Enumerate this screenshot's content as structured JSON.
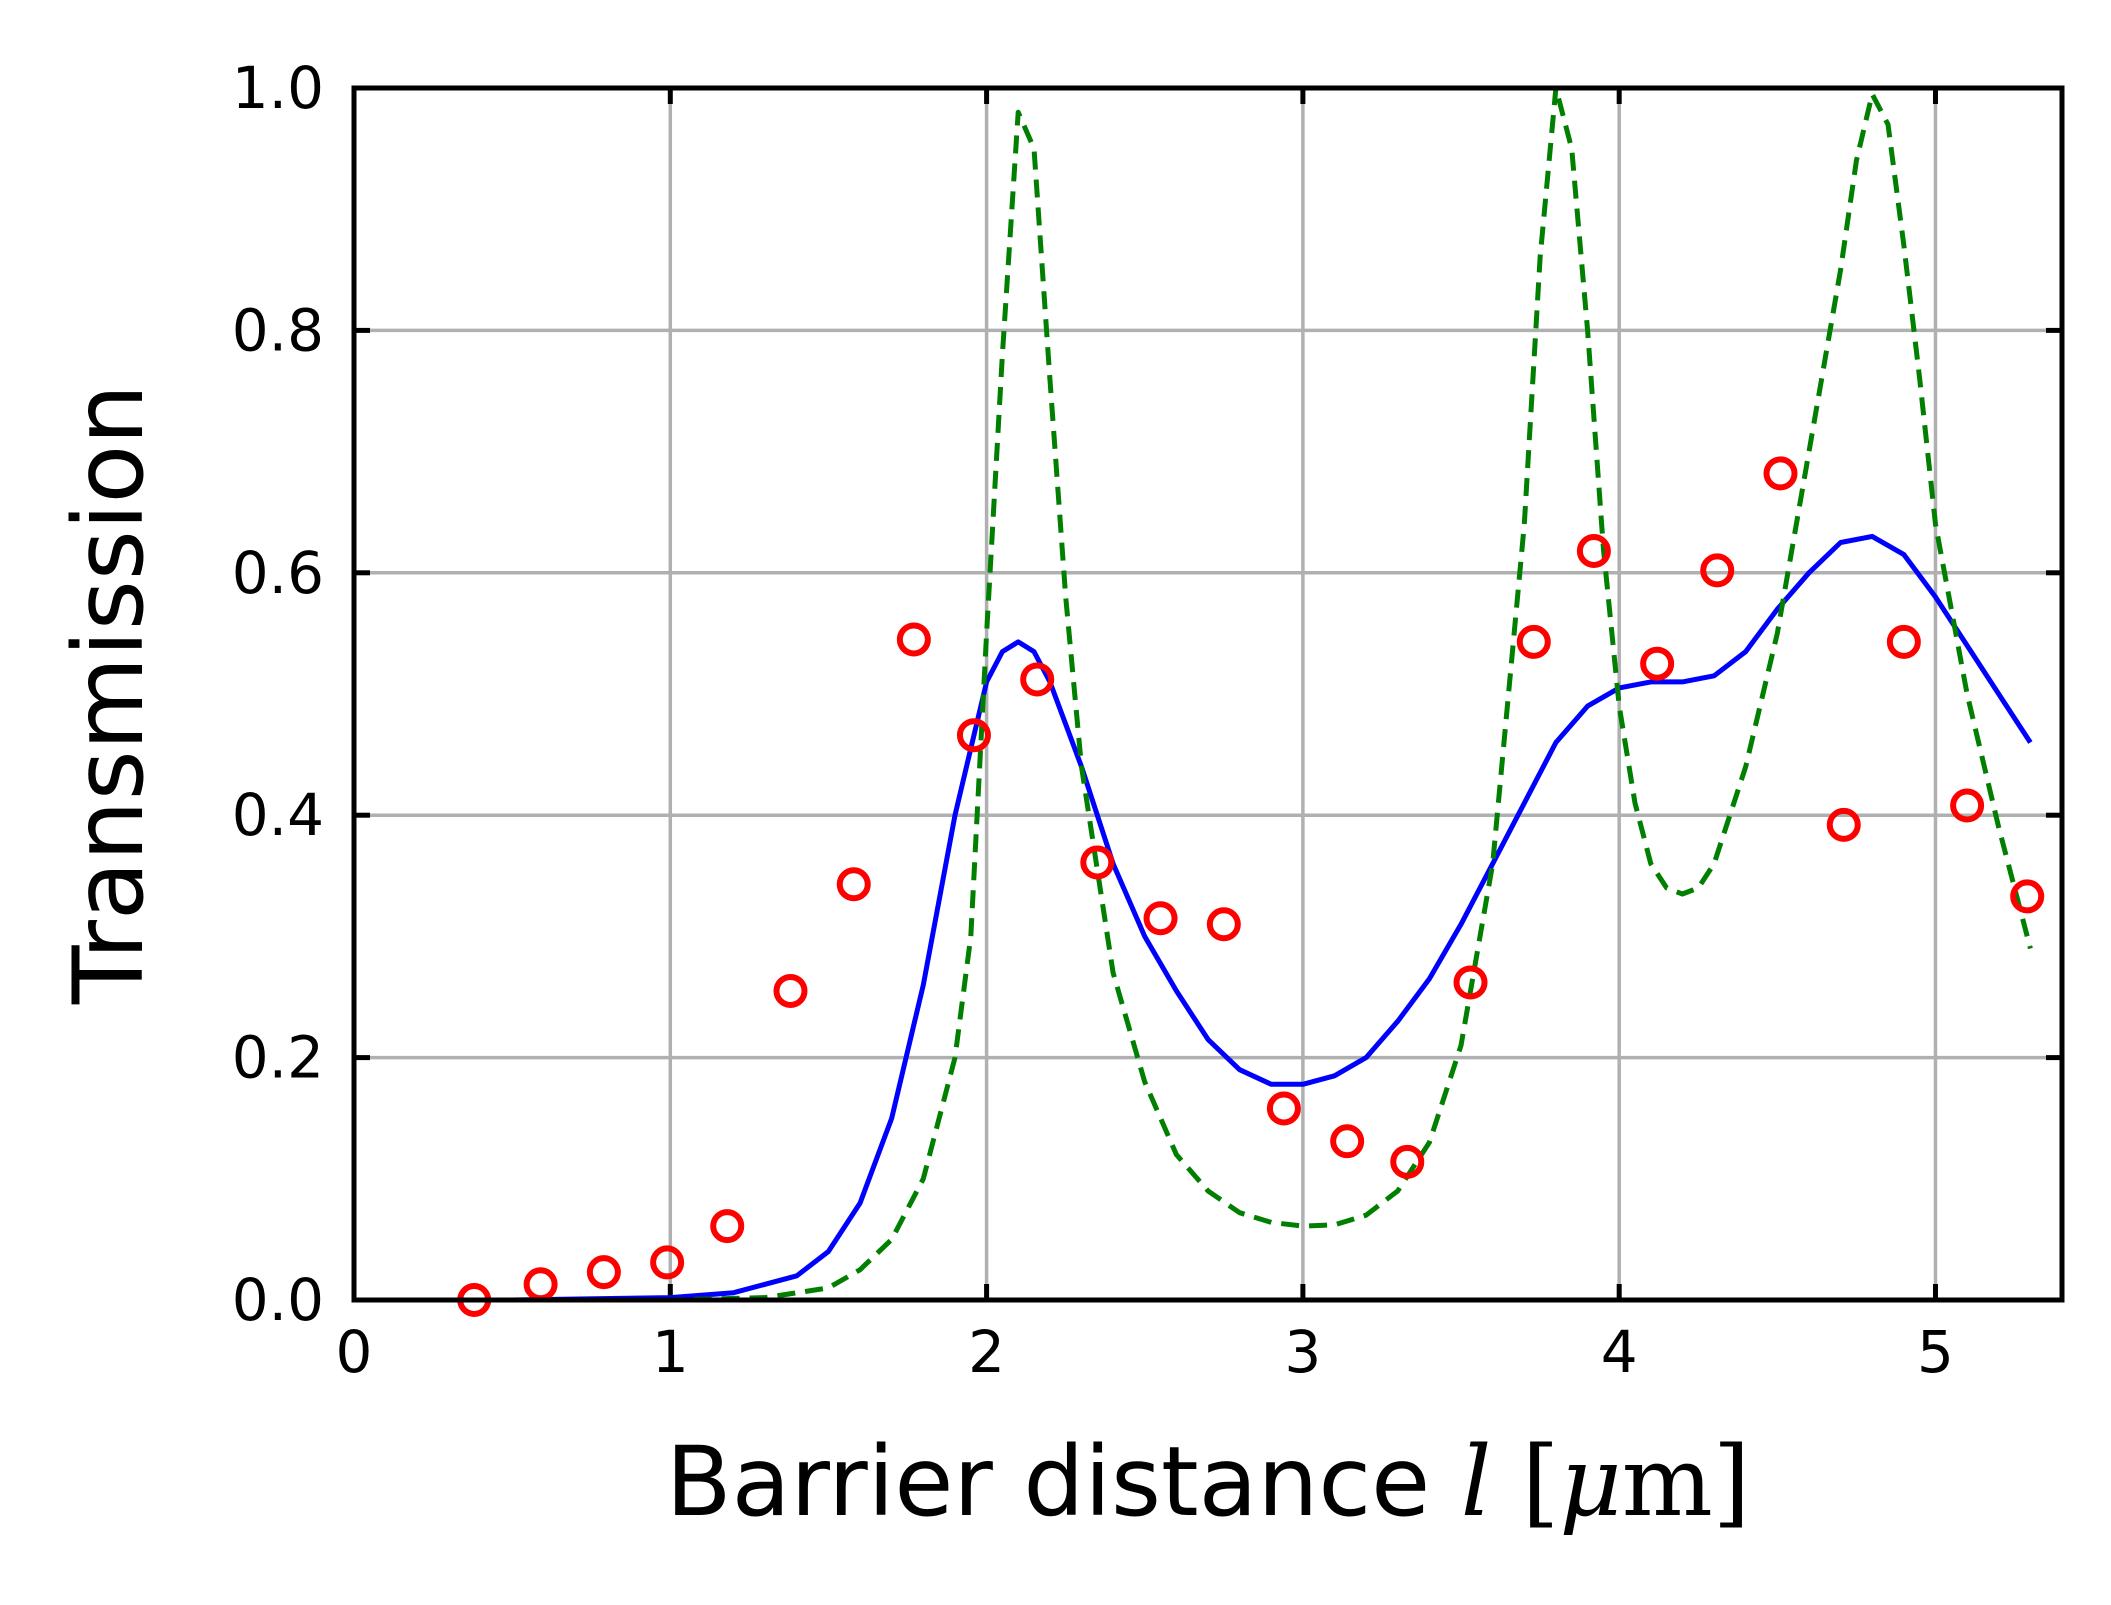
{
  "chart_data": {
    "type": "line",
    "title": "",
    "xlabel": "Barrier distance",
    "xlabel_math_symbol": "l",
    "xlabel_unit_prefix": "[",
    "xlabel_unit_mu": "μ",
    "xlabel_unit_m": "m",
    "xlabel_unit_suffix": "]",
    "ylabel": "Transmission",
    "xlim": [
      0,
      5.4
    ],
    "ylim": [
      0,
      1.0
    ],
    "xticks": [
      0,
      1,
      2,
      3,
      4,
      5
    ],
    "yticks": [
      0.0,
      0.2,
      0.4,
      0.6,
      0.8,
      1.0
    ],
    "xtick_labels": [
      "0",
      "1",
      "2",
      "3",
      "4",
      "5"
    ],
    "ytick_labels": [
      "0.0",
      "0.2",
      "0.4",
      "0.6",
      "0.8",
      "1.0"
    ],
    "grid": true,
    "legend": "none",
    "series": [
      {
        "kind": "solid-line",
        "color": "#0000ff",
        "x": [
          0.1,
          0.5,
          1.0,
          1.2,
          1.4,
          1.5,
          1.6,
          1.7,
          1.8,
          1.9,
          2.0,
          2.05,
          2.1,
          2.15,
          2.2,
          2.3,
          2.4,
          2.5,
          2.6,
          2.7,
          2.8,
          2.9,
          3.0,
          3.1,
          3.2,
          3.3,
          3.4,
          3.5,
          3.6,
          3.7,
          3.8,
          3.9,
          4.0,
          4.1,
          4.2,
          4.3,
          4.4,
          4.5,
          4.6,
          4.7,
          4.8,
          4.9,
          5.0,
          5.1,
          5.2,
          5.3
        ],
        "y": [
          0.0,
          0.0,
          0.002,
          0.006,
          0.02,
          0.04,
          0.08,
          0.15,
          0.26,
          0.4,
          0.51,
          0.535,
          0.543,
          0.535,
          0.51,
          0.44,
          0.36,
          0.3,
          0.255,
          0.215,
          0.19,
          0.178,
          0.178,
          0.185,
          0.2,
          0.23,
          0.265,
          0.31,
          0.36,
          0.41,
          0.46,
          0.49,
          0.505,
          0.51,
          0.51,
          0.515,
          0.535,
          0.57,
          0.6,
          0.625,
          0.63,
          0.615,
          0.58,
          0.54,
          0.5,
          0.46
        ]
      },
      {
        "kind": "dashed-line",
        "color": "#007f00",
        "x": [
          0.1,
          1.0,
          1.3,
          1.5,
          1.6,
          1.7,
          1.8,
          1.9,
          1.95,
          2.0,
          2.05,
          2.1,
          2.15,
          2.2,
          2.25,
          2.3,
          2.4,
          2.5,
          2.6,
          2.7,
          2.8,
          2.9,
          3.0,
          3.1,
          3.2,
          3.3,
          3.4,
          3.5,
          3.6,
          3.7,
          3.75,
          3.8,
          3.85,
          3.9,
          3.95,
          4.0,
          4.05,
          4.1,
          4.15,
          4.2,
          4.25,
          4.3,
          4.4,
          4.5,
          4.6,
          4.7,
          4.75,
          4.8,
          4.85,
          4.9,
          4.95,
          5.0,
          5.1,
          5.2,
          5.3
        ],
        "y": [
          0.0,
          0.0,
          0.002,
          0.01,
          0.025,
          0.05,
          0.1,
          0.2,
          0.3,
          0.55,
          0.78,
          0.98,
          0.95,
          0.76,
          0.58,
          0.44,
          0.27,
          0.18,
          0.12,
          0.09,
          0.072,
          0.064,
          0.061,
          0.062,
          0.07,
          0.09,
          0.13,
          0.21,
          0.36,
          0.64,
          0.86,
          1.0,
          0.95,
          0.8,
          0.62,
          0.49,
          0.41,
          0.36,
          0.34,
          0.335,
          0.34,
          0.36,
          0.44,
          0.55,
          0.7,
          0.85,
          0.94,
          0.995,
          0.97,
          0.87,
          0.76,
          0.64,
          0.5,
          0.39,
          0.29
        ]
      },
      {
        "kind": "circle-markers",
        "color": "#ff0000",
        "x": [
          0.38,
          0.59,
          0.79,
          0.99,
          1.18,
          1.38,
          1.58,
          1.77,
          1.96,
          2.16,
          2.35,
          2.55,
          2.75,
          2.94,
          3.14,
          3.33,
          3.53,
          3.73,
          3.92,
          4.12,
          4.31,
          4.51,
          4.71,
          4.9,
          5.1,
          5.29
        ],
        "y": [
          0.0,
          0.013,
          0.023,
          0.031,
          0.061,
          0.255,
          0.343,
          0.545,
          0.466,
          0.512,
          0.361,
          0.315,
          0.31,
          0.158,
          0.131,
          0.114,
          0.262,
          0.543,
          0.618,
          0.525,
          0.602,
          0.682,
          0.392,
          0.543,
          0.408,
          0.333
        ]
      }
    ]
  }
}
